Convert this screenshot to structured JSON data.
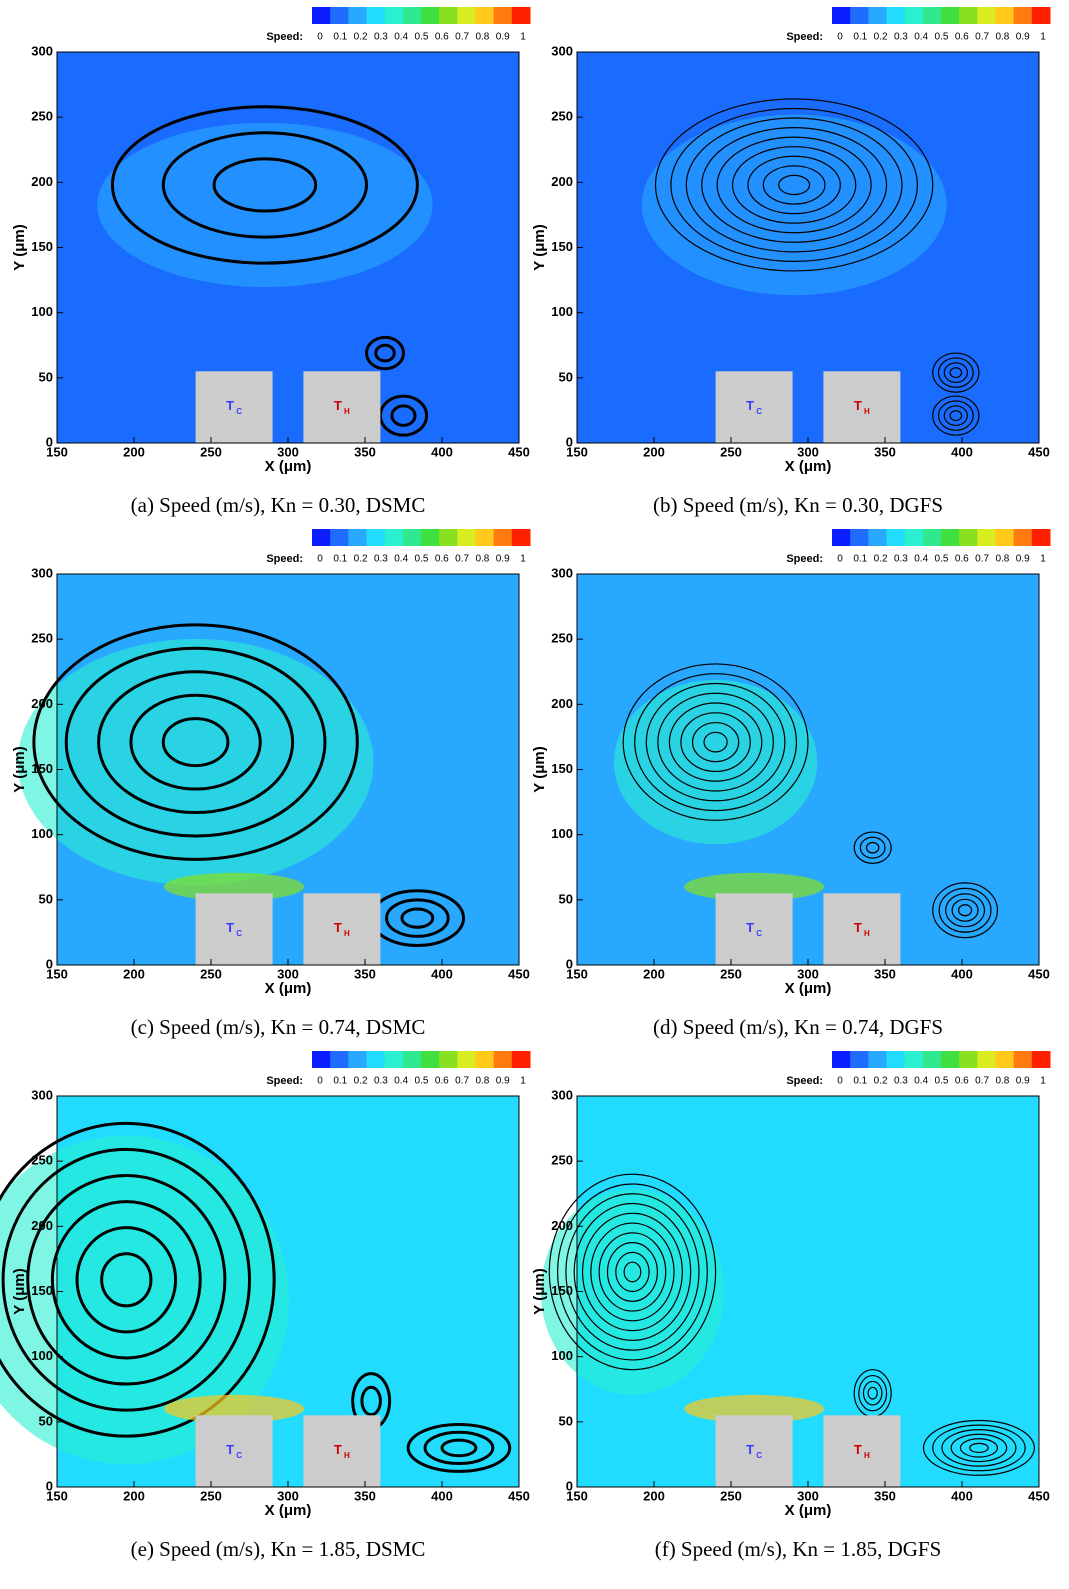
{
  "chart_data": [
    {
      "type": "contour",
      "caption": "(a) Speed (m/s), Kn = 0.30, DSMC",
      "xlabel": "X (μm)",
      "ylabel": "Y (μm)",
      "xlim": [
        150,
        450
      ],
      "ylim": [
        0,
        300
      ],
      "xticks": [
        150,
        200,
        250,
        300,
        350,
        400,
        450
      ],
      "yticks": [
        0,
        50,
        100,
        150,
        200,
        250,
        300
      ],
      "background_color": "#1a6cff",
      "colorbar": {
        "label": "Speed:",
        "ticks": [
          0,
          0.1,
          0.2,
          0.3,
          0.4,
          0.5,
          0.6,
          0.7,
          0.8,
          0.9,
          1
        ],
        "colors": [
          "#0a1eff",
          "#1f6cff",
          "#29a8ff",
          "#22dcff",
          "#2af0d0",
          "#30e890",
          "#40e040",
          "#88e020",
          "#d8ec20",
          "#ffc81a",
          "#ff7a10",
          "#ff2000"
        ]
      },
      "blocks": [
        {
          "label": "T",
          "sub": "C",
          "color": "#3a3aff"
        },
        {
          "label": "T",
          "sub": "H",
          "color": "#cc0000"
        }
      ]
    },
    {
      "type": "contour",
      "caption": "(b) Speed (m/s), Kn = 0.30, DGFS",
      "xlabel": "X (μm)",
      "ylabel": "Y (μm)",
      "xlim": [
        150,
        450
      ],
      "ylim": [
        0,
        300
      ],
      "xticks": [
        150,
        200,
        250,
        300,
        350,
        400,
        450
      ],
      "yticks": [
        0,
        50,
        100,
        150,
        200,
        250,
        300
      ],
      "background_color": "#1a6cff",
      "colorbar": {
        "label": "Speed:",
        "ticks": [
          0,
          0.1,
          0.2,
          0.3,
          0.4,
          0.5,
          0.6,
          0.7,
          0.8,
          0.9,
          1
        ],
        "colors": [
          "#0a1eff",
          "#1f6cff",
          "#29a8ff",
          "#22dcff",
          "#2af0d0",
          "#30e890",
          "#40e040",
          "#88e020",
          "#d8ec20",
          "#ffc81a",
          "#ff7a10",
          "#ff2000"
        ]
      },
      "blocks": [
        {
          "label": "T",
          "sub": "C",
          "color": "#3a3aff"
        },
        {
          "label": "T",
          "sub": "H",
          "color": "#cc0000"
        }
      ]
    },
    {
      "type": "contour",
      "caption": "(c) Speed (m/s), Kn = 0.74, DSMC",
      "xlabel": "X (μm)",
      "ylabel": "Y (μm)",
      "xlim": [
        150,
        450
      ],
      "ylim": [
        0,
        300
      ],
      "xticks": [
        150,
        200,
        250,
        300,
        350,
        400,
        450
      ],
      "yticks": [
        0,
        50,
        100,
        150,
        200,
        250,
        300
      ],
      "background_color": "#29a8ff",
      "colorbar": {
        "label": "Speed:",
        "ticks": [
          0,
          0.1,
          0.2,
          0.3,
          0.4,
          0.5,
          0.6,
          0.7,
          0.8,
          0.9,
          1
        ],
        "colors": [
          "#0a1eff",
          "#1f6cff",
          "#29a8ff",
          "#22dcff",
          "#2af0d0",
          "#30e890",
          "#40e040",
          "#88e020",
          "#d8ec20",
          "#ffc81a",
          "#ff7a10",
          "#ff2000"
        ]
      },
      "blocks": [
        {
          "label": "T",
          "sub": "C",
          "color": "#3a3aff"
        },
        {
          "label": "T",
          "sub": "H",
          "color": "#cc0000"
        }
      ]
    },
    {
      "type": "contour",
      "caption": "(d) Speed (m/s), Kn = 0.74, DGFS",
      "xlabel": "X (μm)",
      "ylabel": "Y (μm)",
      "xlim": [
        150,
        450
      ],
      "ylim": [
        0,
        300
      ],
      "xticks": [
        150,
        200,
        250,
        300,
        350,
        400,
        450
      ],
      "yticks": [
        0,
        50,
        100,
        150,
        200,
        250,
        300
      ],
      "background_color": "#29a8ff",
      "colorbar": {
        "label": "Speed:",
        "ticks": [
          0,
          0.1,
          0.2,
          0.3,
          0.4,
          0.5,
          0.6,
          0.7,
          0.8,
          0.9,
          1
        ],
        "colors": [
          "#0a1eff",
          "#1f6cff",
          "#29a8ff",
          "#22dcff",
          "#2af0d0",
          "#30e890",
          "#40e040",
          "#88e020",
          "#d8ec20",
          "#ffc81a",
          "#ff7a10",
          "#ff2000"
        ]
      },
      "blocks": [
        {
          "label": "T",
          "sub": "C",
          "color": "#3a3aff"
        },
        {
          "label": "T",
          "sub": "H",
          "color": "#cc0000"
        }
      ]
    },
    {
      "type": "contour",
      "caption": "(e) Speed (m/s), Kn = 1.85, DSMC",
      "xlabel": "X (μm)",
      "ylabel": "Y (μm)",
      "xlim": [
        150,
        450
      ],
      "ylim": [
        0,
        300
      ],
      "xticks": [
        150,
        200,
        250,
        300,
        350,
        400,
        450
      ],
      "yticks": [
        0,
        50,
        100,
        150,
        200,
        250,
        300
      ],
      "background_color": "#22dcff",
      "colorbar": {
        "label": "Speed:",
        "ticks": [
          0,
          0.1,
          0.2,
          0.3,
          0.4,
          0.5,
          0.6,
          0.7,
          0.8,
          0.9,
          1
        ],
        "colors": [
          "#0a1eff",
          "#1f6cff",
          "#29a8ff",
          "#22dcff",
          "#2af0d0",
          "#30e890",
          "#40e040",
          "#88e020",
          "#d8ec20",
          "#ffc81a",
          "#ff7a10",
          "#ff2000"
        ]
      },
      "blocks": [
        {
          "label": "T",
          "sub": "C",
          "color": "#3a3aff"
        },
        {
          "label": "T",
          "sub": "H",
          "color": "#cc0000"
        }
      ]
    },
    {
      "type": "contour",
      "caption": "(f) Speed (m/s), Kn = 1.85, DGFS",
      "xlabel": "X (μm)",
      "ylabel": "Y (μm)",
      "xlim": [
        150,
        450
      ],
      "ylim": [
        0,
        300
      ],
      "xticks": [
        150,
        200,
        250,
        300,
        350,
        400,
        450
      ],
      "yticks": [
        0,
        50,
        100,
        150,
        200,
        250,
        300
      ],
      "background_color": "#22dcff",
      "colorbar": {
        "label": "Speed:",
        "ticks": [
          0,
          0.1,
          0.2,
          0.3,
          0.4,
          0.5,
          0.6,
          0.7,
          0.8,
          0.9,
          1
        ],
        "colors": [
          "#0a1eff",
          "#1f6cff",
          "#29a8ff",
          "#22dcff",
          "#2af0d0",
          "#30e890",
          "#40e040",
          "#88e020",
          "#d8ec20",
          "#ffc81a",
          "#ff7a10",
          "#ff2000"
        ]
      },
      "blocks": [
        {
          "label": "T",
          "sub": "C",
          "color": "#3a3aff"
        },
        {
          "label": "T",
          "sub": "H",
          "color": "#cc0000"
        }
      ]
    }
  ]
}
